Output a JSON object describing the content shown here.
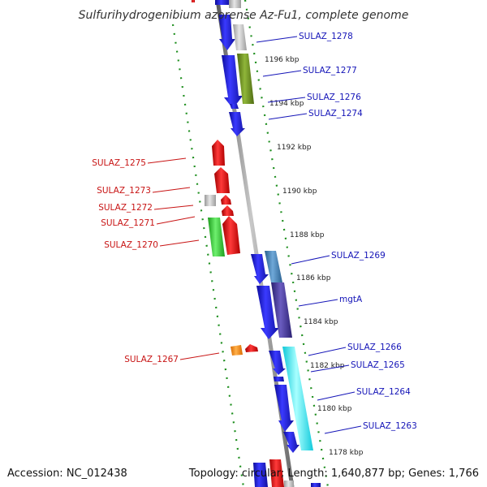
{
  "title": "Sulfurihydrogenibium azorense Az-Fu1, complete genome",
  "footer": {
    "accession": "Accession: NC_012438",
    "summary": "Topology: circular; Length: 1,640,877 bp; Genes: 1,766"
  },
  "colors": {
    "backbone": "#8c8c8c",
    "ring_dots": "#1f8f1f",
    "label_forward": "#1515b8",
    "label_reverse": "#c81414",
    "cds": "#1a1ae0",
    "reverse_cds": "#e81c1c",
    "trna": "#ff8800",
    "unknown": "#bdbdbd"
  },
  "ticks": [
    {
      "label": "1196 kbp"
    },
    {
      "label": "1194 kbp"
    },
    {
      "label": "1192 kbp"
    },
    {
      "label": "1190 kbp"
    },
    {
      "label": "1188 kbp"
    },
    {
      "label": "1186 kbp"
    },
    {
      "label": "1184 kbp"
    },
    {
      "label": "1182 kbp"
    },
    {
      "label": "1180 kbp"
    },
    {
      "label": "1178 kbp"
    }
  ],
  "genes_forward": [
    {
      "label": "SULAZ_1278"
    },
    {
      "label": "SULAZ_1277"
    },
    {
      "label": "SULAZ_1276"
    },
    {
      "label": "SULAZ_1274"
    },
    {
      "label": "SULAZ_1269"
    },
    {
      "label": "mgtA"
    },
    {
      "label": "SULAZ_1266"
    },
    {
      "label": "SULAZ_1265"
    },
    {
      "label": "SULAZ_1264"
    },
    {
      "label": "SULAZ_1263"
    }
  ],
  "genes_reverse": [
    {
      "label": "SULAZ_1275"
    },
    {
      "label": "SULAZ_1273"
    },
    {
      "label": "SULAZ_1272"
    },
    {
      "label": "SULAZ_1271"
    },
    {
      "label": "SULAZ_1270"
    },
    {
      "label": "SULAZ_1267"
    }
  ]
}
